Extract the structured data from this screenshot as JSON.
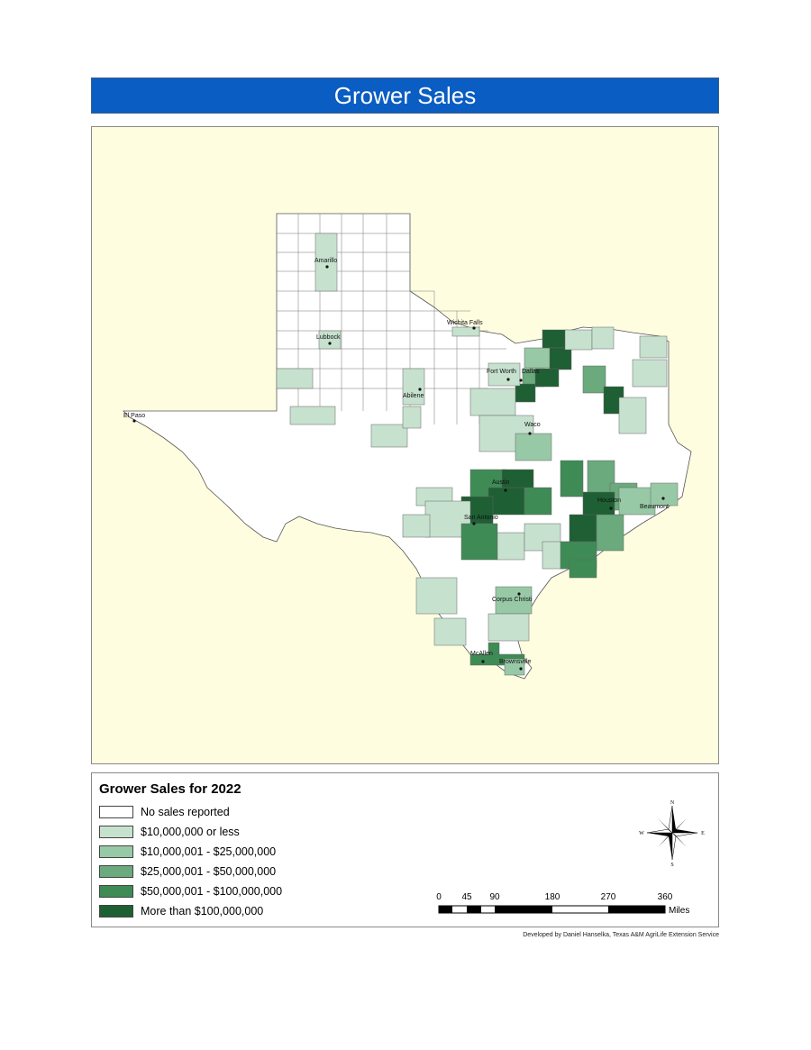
{
  "title": "Grower Sales",
  "legend": {
    "title": "Grower Sales for 2022",
    "classes": [
      {
        "label": "No sales reported",
        "color": "#ffffff"
      },
      {
        "label": "$10,000,000 or less",
        "color": "#c7e1cf"
      },
      {
        "label": "$10,000,001 - $25,000,000",
        "color": "#98c9a6"
      },
      {
        "label": "$25,000,001 - $50,000,000",
        "color": "#6aaa7c"
      },
      {
        "label": "$50,000,001 - $100,000,000",
        "color": "#3e8b55"
      },
      {
        "label": "More than $100,000,000",
        "color": "#1e5f33"
      }
    ]
  },
  "cities": [
    {
      "name": "Amarillo"
    },
    {
      "name": "Wichita Falls"
    },
    {
      "name": "Lubbock"
    },
    {
      "name": "Fort Worth"
    },
    {
      "name": "Dallas"
    },
    {
      "name": "Abilene"
    },
    {
      "name": "El Paso"
    },
    {
      "name": "Waco"
    },
    {
      "name": "Austin"
    },
    {
      "name": "Houston"
    },
    {
      "name": "Beaumont"
    },
    {
      "name": "San Antonio"
    },
    {
      "name": "Corpus Christi"
    },
    {
      "name": "McAllen"
    },
    {
      "name": "Brownsville"
    }
  ],
  "scale": {
    "ticks": [
      "0",
      "45",
      "90",
      "180",
      "270",
      "360"
    ],
    "unit": "Miles"
  },
  "compass": {
    "n": "N",
    "s": "S",
    "e": "E",
    "w": "W"
  },
  "credit": "Developed by Daniel Hanselka, Texas A&M AgriLife Extension Service"
}
